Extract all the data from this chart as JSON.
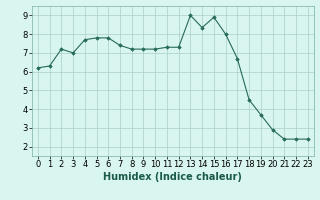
{
  "x": [
    0,
    1,
    2,
    3,
    4,
    5,
    6,
    7,
    8,
    9,
    10,
    11,
    12,
    13,
    14,
    15,
    16,
    17,
    18,
    19,
    20,
    21,
    22,
    23
  ],
  "y": [
    6.2,
    6.3,
    7.2,
    7.0,
    7.7,
    7.8,
    7.8,
    7.4,
    7.2,
    7.2,
    7.2,
    7.3,
    7.3,
    9.0,
    8.35,
    8.9,
    8.0,
    6.7,
    4.5,
    3.7,
    2.9,
    2.4,
    2.4,
    2.4
  ],
  "xlabel": "Humidex (Indice chaleur)",
  "xlim": [
    -0.5,
    23.5
  ],
  "ylim": [
    1.5,
    9.5
  ],
  "yticks": [
    2,
    3,
    4,
    5,
    6,
    7,
    8,
    9
  ],
  "xticks": [
    0,
    1,
    2,
    3,
    4,
    5,
    6,
    7,
    8,
    9,
    10,
    11,
    12,
    13,
    14,
    15,
    16,
    17,
    18,
    19,
    20,
    21,
    22,
    23
  ],
  "line_color": "#276b5a",
  "marker_color": "#276b5a",
  "bg_color": "#d8f5f0",
  "grid_color": "#aacfca",
  "xlabel_fontsize": 7.0,
  "tick_fontsize": 6.0
}
